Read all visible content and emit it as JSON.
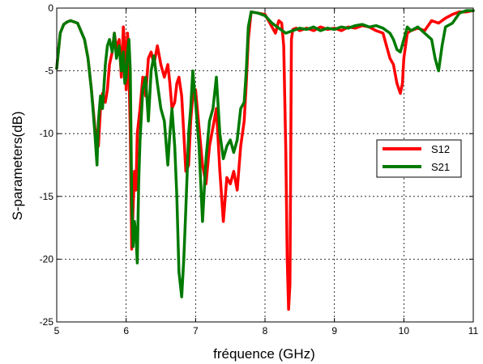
{
  "chart_data": {
    "type": "line",
    "xlabel": "fréquence (GHz)",
    "ylabel": "S-parameters(dB)",
    "xlim": [
      5,
      11
    ],
    "ylim": [
      -25,
      0
    ],
    "xticks": [
      5,
      6,
      7,
      8,
      9,
      10,
      11
    ],
    "yticks": [
      0,
      -5,
      -10,
      -15,
      -20,
      -25
    ],
    "xtick_labels": [
      "5",
      "6",
      "7",
      "8",
      "9",
      "10",
      "11"
    ],
    "ytick_labels": [
      "0",
      "-5",
      "-10",
      "-15",
      "-20",
      "-25"
    ],
    "grid": true,
    "legend_position": "right",
    "series": [
      {
        "name": "S12",
        "color": "#ff0000",
        "x": [
          5.0,
          5.05,
          5.1,
          5.15,
          5.2,
          5.3,
          5.4,
          5.45,
          5.5,
          5.55,
          5.6,
          5.63,
          5.66,
          5.7,
          5.73,
          5.76,
          5.8,
          5.83,
          5.86,
          5.9,
          5.93,
          5.96,
          5.98,
          6.0,
          6.02,
          6.04,
          6.06,
          6.08,
          6.1,
          6.12,
          6.14,
          6.16,
          6.2,
          6.24,
          6.28,
          6.32,
          6.36,
          6.4,
          6.45,
          6.5,
          6.55,
          6.6,
          6.63,
          6.66,
          6.7,
          6.73,
          6.76,
          6.8,
          6.83,
          6.86,
          6.9,
          6.93,
          6.96,
          7.0,
          7.05,
          7.1,
          7.15,
          7.2,
          7.25,
          7.3,
          7.35,
          7.4,
          7.45,
          7.5,
          7.55,
          7.6,
          7.65,
          7.7,
          7.73,
          7.76,
          7.8,
          7.9,
          8.0,
          8.1,
          8.15,
          8.2,
          8.24,
          8.27,
          8.3,
          8.32,
          8.34,
          8.36,
          8.38,
          8.4,
          8.45,
          8.5,
          8.6,
          8.7,
          8.8,
          8.9,
          9.0,
          9.1,
          9.2,
          9.3,
          9.4,
          9.5,
          9.6,
          9.7,
          9.75,
          9.8,
          9.85,
          9.9,
          9.95,
          9.98,
          10.0,
          10.05,
          10.1,
          10.2,
          10.3,
          10.4,
          10.5,
          10.6,
          10.7,
          10.8,
          10.9,
          11.0
        ],
        "values": [
          -4.8,
          -2.0,
          -1.3,
          -1.1,
          -1.0,
          -1.2,
          -2.5,
          -4.0,
          -6.5,
          -9.5,
          -11.0,
          -8.0,
          -6.8,
          -7.5,
          -6.5,
          -4.5,
          -3.5,
          -2.0,
          -3.2,
          -2.5,
          -5.5,
          -1.5,
          -3.0,
          -6.5,
          -2.0,
          -5.0,
          -10.0,
          -19.2,
          -16.0,
          -13.0,
          -14.5,
          -10.0,
          -8.0,
          -5.5,
          -7.0,
          -4.0,
          -3.5,
          -4.5,
          -3.0,
          -4.5,
          -5.5,
          -4.5,
          -6.0,
          -8.0,
          -7.5,
          -6.0,
          -5.5,
          -7.0,
          -10.0,
          -13.0,
          -12.5,
          -9.0,
          -7.0,
          -6.5,
          -9.5,
          -12.5,
          -14.0,
          -11.0,
          -9.5,
          -8.0,
          -13.0,
          -17.0,
          -13.5,
          -14.0,
          -13.0,
          -14.5,
          -11.0,
          -9.0,
          -6.0,
          -2.5,
          -0.3,
          -0.4,
          -0.5,
          -1.5,
          -2.0,
          -1.0,
          -1.2,
          -3.0,
          -11.5,
          -20.0,
          -24.0,
          -22.0,
          -2.5,
          -1.7,
          -1.6,
          -1.8,
          -1.6,
          -1.8,
          -1.5,
          -1.7,
          -1.6,
          -1.8,
          -1.5,
          -1.6,
          -1.4,
          -1.5,
          -1.8,
          -2.0,
          -3.0,
          -4.0,
          -4.5,
          -6.0,
          -6.8,
          -6.0,
          -4.0,
          -2.0,
          -1.8,
          -1.6,
          -1.8,
          -1.0,
          -1.2,
          -0.8,
          -0.5,
          -0.3,
          -0.3,
          -0.2
        ]
      },
      {
        "name": "S21",
        "color": "#007a00",
        "x": [
          5.0,
          5.05,
          5.1,
          5.15,
          5.2,
          5.3,
          5.4,
          5.45,
          5.5,
          5.55,
          5.58,
          5.6,
          5.63,
          5.66,
          5.7,
          5.73,
          5.76,
          5.8,
          5.83,
          5.86,
          5.9,
          5.93,
          5.96,
          5.98,
          6.0,
          6.02,
          6.04,
          6.06,
          6.08,
          6.1,
          6.12,
          6.14,
          6.16,
          6.18,
          6.2,
          6.24,
          6.28,
          6.32,
          6.36,
          6.4,
          6.45,
          6.5,
          6.55,
          6.6,
          6.63,
          6.66,
          6.7,
          6.73,
          6.76,
          6.8,
          6.83,
          6.86,
          6.9,
          6.93,
          6.96,
          7.0,
          7.05,
          7.1,
          7.15,
          7.2,
          7.25,
          7.3,
          7.35,
          7.4,
          7.45,
          7.5,
          7.55,
          7.6,
          7.65,
          7.7,
          7.73,
          7.76,
          7.8,
          7.9,
          8.0,
          8.1,
          8.2,
          8.3,
          8.4,
          8.5,
          8.6,
          8.7,
          8.8,
          8.9,
          9.0,
          9.1,
          9.2,
          9.3,
          9.4,
          9.5,
          9.6,
          9.7,
          9.8,
          9.85,
          9.9,
          9.95,
          10.0,
          10.05,
          10.1,
          10.2,
          10.3,
          10.4,
          10.45,
          10.5,
          10.55,
          10.6,
          10.7,
          10.8,
          10.9,
          11.0
        ],
        "values": [
          -4.8,
          -2.0,
          -1.3,
          -1.1,
          -1.0,
          -1.2,
          -2.5,
          -4.0,
          -6.5,
          -10.0,
          -12.5,
          -9.0,
          -7.0,
          -8.0,
          -4.5,
          -3.0,
          -2.5,
          -3.5,
          -2.0,
          -4.0,
          -3.0,
          -5.0,
          -3.5,
          -6.0,
          -5.5,
          -3.5,
          -2.5,
          -5.0,
          -15.0,
          -19.0,
          -17.0,
          -18.0,
          -20.3,
          -14.0,
          -10.5,
          -6.5,
          -5.5,
          -9.0,
          -5.0,
          -3.8,
          -6.0,
          -8.0,
          -9.0,
          -12.5,
          -10.0,
          -8.0,
          -11.0,
          -15.0,
          -21.0,
          -23.0,
          -20.0,
          -16.0,
          -10.0,
          -8.0,
          -5.0,
          -7.5,
          -11.0,
          -17.0,
          -12.0,
          -9.0,
          -8.0,
          -5.5,
          -10.0,
          -12.0,
          -11.0,
          -10.5,
          -11.5,
          -10.5,
          -8.0,
          -7.5,
          -5.0,
          -1.5,
          -0.3,
          -0.4,
          -0.6,
          -1.2,
          -1.6,
          -2.0,
          -1.8,
          -1.6,
          -1.7,
          -1.5,
          -1.8,
          -1.6,
          -1.7,
          -1.5,
          -1.6,
          -1.4,
          -1.3,
          -1.5,
          -1.4,
          -1.6,
          -2.0,
          -2.5,
          -3.3,
          -3.5,
          -2.5,
          -1.5,
          -1.8,
          -1.5,
          -2.0,
          -2.5,
          -4.0,
          -5.0,
          -3.0,
          -1.5,
          -1.2,
          -0.4,
          -0.2,
          -0.2
        ]
      }
    ]
  }
}
